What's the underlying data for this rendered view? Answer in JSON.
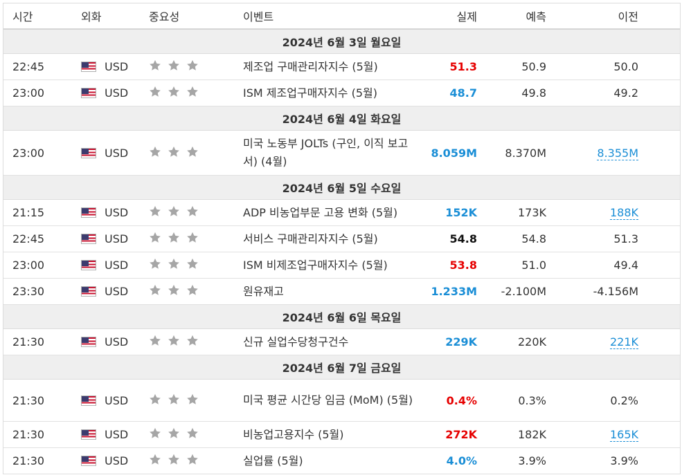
{
  "headers": {
    "time": "시간",
    "currency": "외화",
    "importance": "중요성",
    "event": "이벤트",
    "actual": "실제",
    "forecast": "예측",
    "previous": "이전"
  },
  "colors": {
    "actual_red": "#e60000",
    "actual_blue": "#1a8ed6",
    "actual_black": "#111111",
    "star_gray": "#a6a6a6",
    "date_row_bg": "#efefef"
  },
  "icons": {
    "flag": "us-flag-icon",
    "star": "star-icon"
  },
  "days": [
    {
      "date": "2024년 6월 3일 월요일",
      "events": [
        {
          "time": "22:45",
          "currency": "USD",
          "stars": 3,
          "event": "제조업 구매관리자지수 (5월)",
          "actual": "51.3",
          "actual_color": "red",
          "forecast": "50.9",
          "previous": "50.0",
          "previous_link": false
        },
        {
          "time": "23:00",
          "currency": "USD",
          "stars": 3,
          "event": "ISM 제조업구매자지수 (5월)",
          "actual": "48.7",
          "actual_color": "blue",
          "forecast": "49.8",
          "previous": "49.2",
          "previous_link": false
        }
      ]
    },
    {
      "date": "2024년 6월 4일 화요일",
      "events": [
        {
          "time": "23:00",
          "currency": "USD",
          "stars": 3,
          "event": "미국 노동부 JOLTs (구인, 이직 보고서) (4월)",
          "actual": "8.059M",
          "actual_color": "blue",
          "forecast": "8.370M",
          "previous": "8.355M",
          "previous_link": true
        }
      ]
    },
    {
      "date": "2024년 6월 5일 수요일",
      "events": [
        {
          "time": "21:15",
          "currency": "USD",
          "stars": 3,
          "event": "ADP 비농업부문 고용 변화 (5월)",
          "actual": "152K",
          "actual_color": "blue",
          "forecast": "173K",
          "previous": "188K",
          "previous_link": true
        },
        {
          "time": "22:45",
          "currency": "USD",
          "stars": 3,
          "event": "서비스 구매관리자지수 (5월)",
          "actual": "54.8",
          "actual_color": "black",
          "forecast": "54.8",
          "previous": "51.3",
          "previous_link": false
        },
        {
          "time": "23:00",
          "currency": "USD",
          "stars": 3,
          "event": "ISM 비제조업구매자지수 (5월)",
          "actual": "53.8",
          "actual_color": "red",
          "forecast": "51.0",
          "previous": "49.4",
          "previous_link": false
        },
        {
          "time": "23:30",
          "currency": "USD",
          "stars": 3,
          "event": "원유재고",
          "actual": "1.233M",
          "actual_color": "blue",
          "forecast": "-2.100M",
          "previous": "-4.156M",
          "previous_link": false
        }
      ]
    },
    {
      "date": "2024년 6월 6일 목요일",
      "events": [
        {
          "time": "21:30",
          "currency": "USD",
          "stars": 3,
          "event": "신규 실업수당청구건수",
          "actual": "229K",
          "actual_color": "blue",
          "forecast": "220K",
          "previous": "221K",
          "previous_link": true
        }
      ]
    },
    {
      "date": "2024년 6월 7일 금요일",
      "events": [
        {
          "time": "21:30",
          "currency": "USD",
          "stars": 3,
          "event": "미국 평균 시간당 임금 (MoM) (5월)",
          "actual": "0.4%",
          "actual_color": "red",
          "forecast": "0.3%",
          "previous": "0.2%",
          "previous_link": false
        },
        {
          "time": "21:30",
          "currency": "USD",
          "stars": 3,
          "event": "비농업고용지수 (5월)",
          "actual": "272K",
          "actual_color": "red",
          "forecast": "182K",
          "previous": "165K",
          "previous_link": true
        },
        {
          "time": "21:30",
          "currency": "USD",
          "stars": 3,
          "event": "실업률 (5월)",
          "actual": "4.0%",
          "actual_color": "blue",
          "forecast": "3.9%",
          "previous": "3.9%",
          "previous_link": false
        }
      ]
    }
  ]
}
